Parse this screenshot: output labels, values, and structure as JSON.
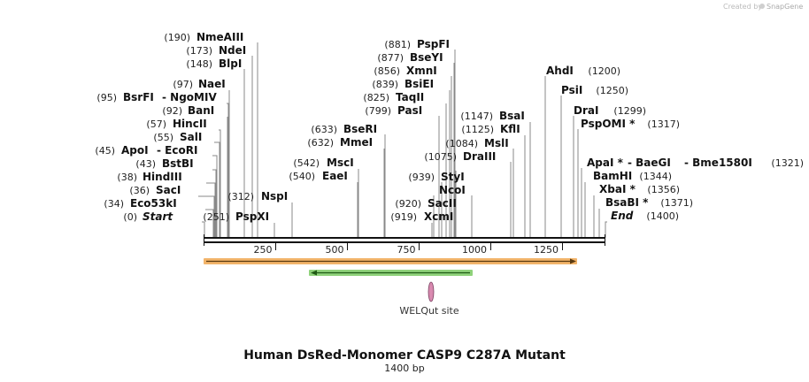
{
  "credit": {
    "text": "Created by",
    "brand": "SnapGene"
  },
  "title": "Human DsRed-Monomer CASP9 C287A Mutant",
  "subtitle": "1400 bp",
  "feature_label": "WELQut site",
  "colors": {
    "backbone": "#111111",
    "orange_feature": "#f2b46a",
    "orange_arrow": "#5a3a10",
    "green_feature": "#8fd27a",
    "green_arrow": "#1f5a14",
    "site_marker": "#d98ab0"
  },
  "ruler": {
    "ticks": [
      {
        "label": "250"
      },
      {
        "label": "500"
      },
      {
        "label": "750"
      },
      {
        "label": "1000"
      },
      {
        "label": "1250"
      }
    ]
  },
  "enzymes": [
    {
      "num": "(0)",
      "name": "Start",
      "italic": true
    },
    {
      "num": "(34)",
      "name": "Eco53kI"
    },
    {
      "num": "(36)",
      "name": "SacI"
    },
    {
      "num": "(38)",
      "name": "HindIII"
    },
    {
      "num": "(43)",
      "name": "BstBI"
    },
    {
      "num": "(45)",
      "name": "ApoI",
      "name2": "- EcoRI"
    },
    {
      "num": "(55)",
      "name": "SalI"
    },
    {
      "num": "(57)",
      "name": "HincII"
    },
    {
      "num": "(92)",
      "name": "BanI"
    },
    {
      "num": "(95)",
      "name": "BsrFI",
      "name2": "- NgoMIV"
    },
    {
      "num": "(97)",
      "name": "NaeI"
    },
    {
      "num": "(148)",
      "name": "BlpI"
    },
    {
      "num": "(173)",
      "name": "NdeI"
    },
    {
      "num": "(190)",
      "name": "NmeAIII"
    },
    {
      "num": "(251)",
      "name": "PspXI"
    },
    {
      "num": "(312)",
      "name": "NspI"
    },
    {
      "num": "(540)",
      "name": "EaeI"
    },
    {
      "num": "(542)",
      "name": "MscI"
    },
    {
      "num": "(632)",
      "name": "MmeI"
    },
    {
      "num": "(633)",
      "name": "BseRI"
    },
    {
      "num": "(919)",
      "name": "XcmI"
    },
    {
      "num": "(920)",
      "name": "SacII"
    },
    {
      "num": "",
      "name": "NcoI"
    },
    {
      "num": "(939)",
      "name": "StyI"
    },
    {
      "num": "(1075)",
      "name": "DraIII"
    },
    {
      "num": "(1084)",
      "name": "MslI"
    },
    {
      "num": "(799)",
      "name": "PasI"
    },
    {
      "num": "(825)",
      "name": "TaqII"
    },
    {
      "num": "(839)",
      "name": "BsiEI"
    },
    {
      "num": "(856)",
      "name": "XmnI"
    },
    {
      "num": "(877)",
      "name": "BseYI"
    },
    {
      "num": "(881)",
      "name": "PspFI"
    },
    {
      "num": "(1125)",
      "name": "KflI"
    },
    {
      "num": "(1147)",
      "name": "BsaI"
    },
    {
      "num": "(1200)",
      "name": "AhdI"
    },
    {
      "num": "(1250)",
      "name": "PsiI"
    },
    {
      "num": "(1299)",
      "name": "DraI"
    },
    {
      "num": "(1317)",
      "name": "PspOMI *"
    },
    {
      "num": "(1321)",
      "name": "ApaI *",
      "name2": "- BaeGI",
      "name3": "- Bme1580I"
    },
    {
      "num": "(1344)",
      "name": "BamHI"
    },
    {
      "num": "(1356)",
      "name": "XbaI *"
    },
    {
      "num": "(1371)",
      "name": "BsaBI *"
    },
    {
      "num": "(1400)",
      "name": "End",
      "italic": true
    }
  ]
}
